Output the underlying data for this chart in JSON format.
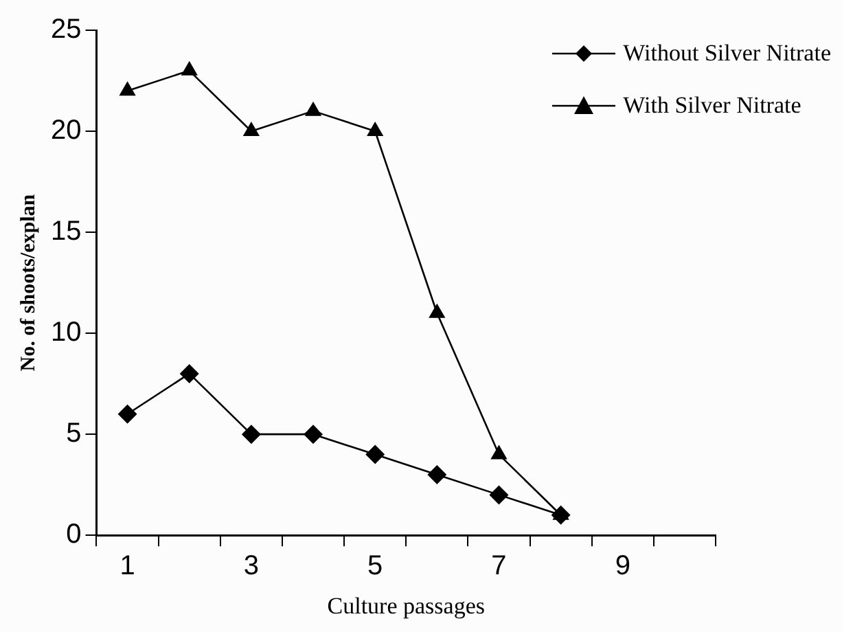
{
  "chart_data": {
    "type": "line",
    "xlabel": "Culture passages",
    "ylabel": "No. of shoots/explan",
    "categories": [
      "1",
      null,
      "3",
      null,
      "5",
      null,
      "7",
      null,
      "9",
      null
    ],
    "series": [
      {
        "name": "Without Silver Nitrate",
        "color": "#000000",
        "marker": "diamond",
        "values": [
          6,
          8,
          5,
          5,
          4,
          3,
          2,
          1,
          null,
          null
        ]
      },
      {
        "name": "With Silver Nitrate",
        "color": "#000000",
        "marker": "triangle",
        "values": [
          22,
          23,
          20,
          21,
          20,
          11,
          4,
          1,
          null,
          null
        ]
      }
    ],
    "ylim": [
      0,
      25
    ],
    "yticks": [
      0,
      5,
      10,
      15,
      20,
      25
    ],
    "grid": false,
    "legend": "top right",
    "line_style": "solid"
  }
}
